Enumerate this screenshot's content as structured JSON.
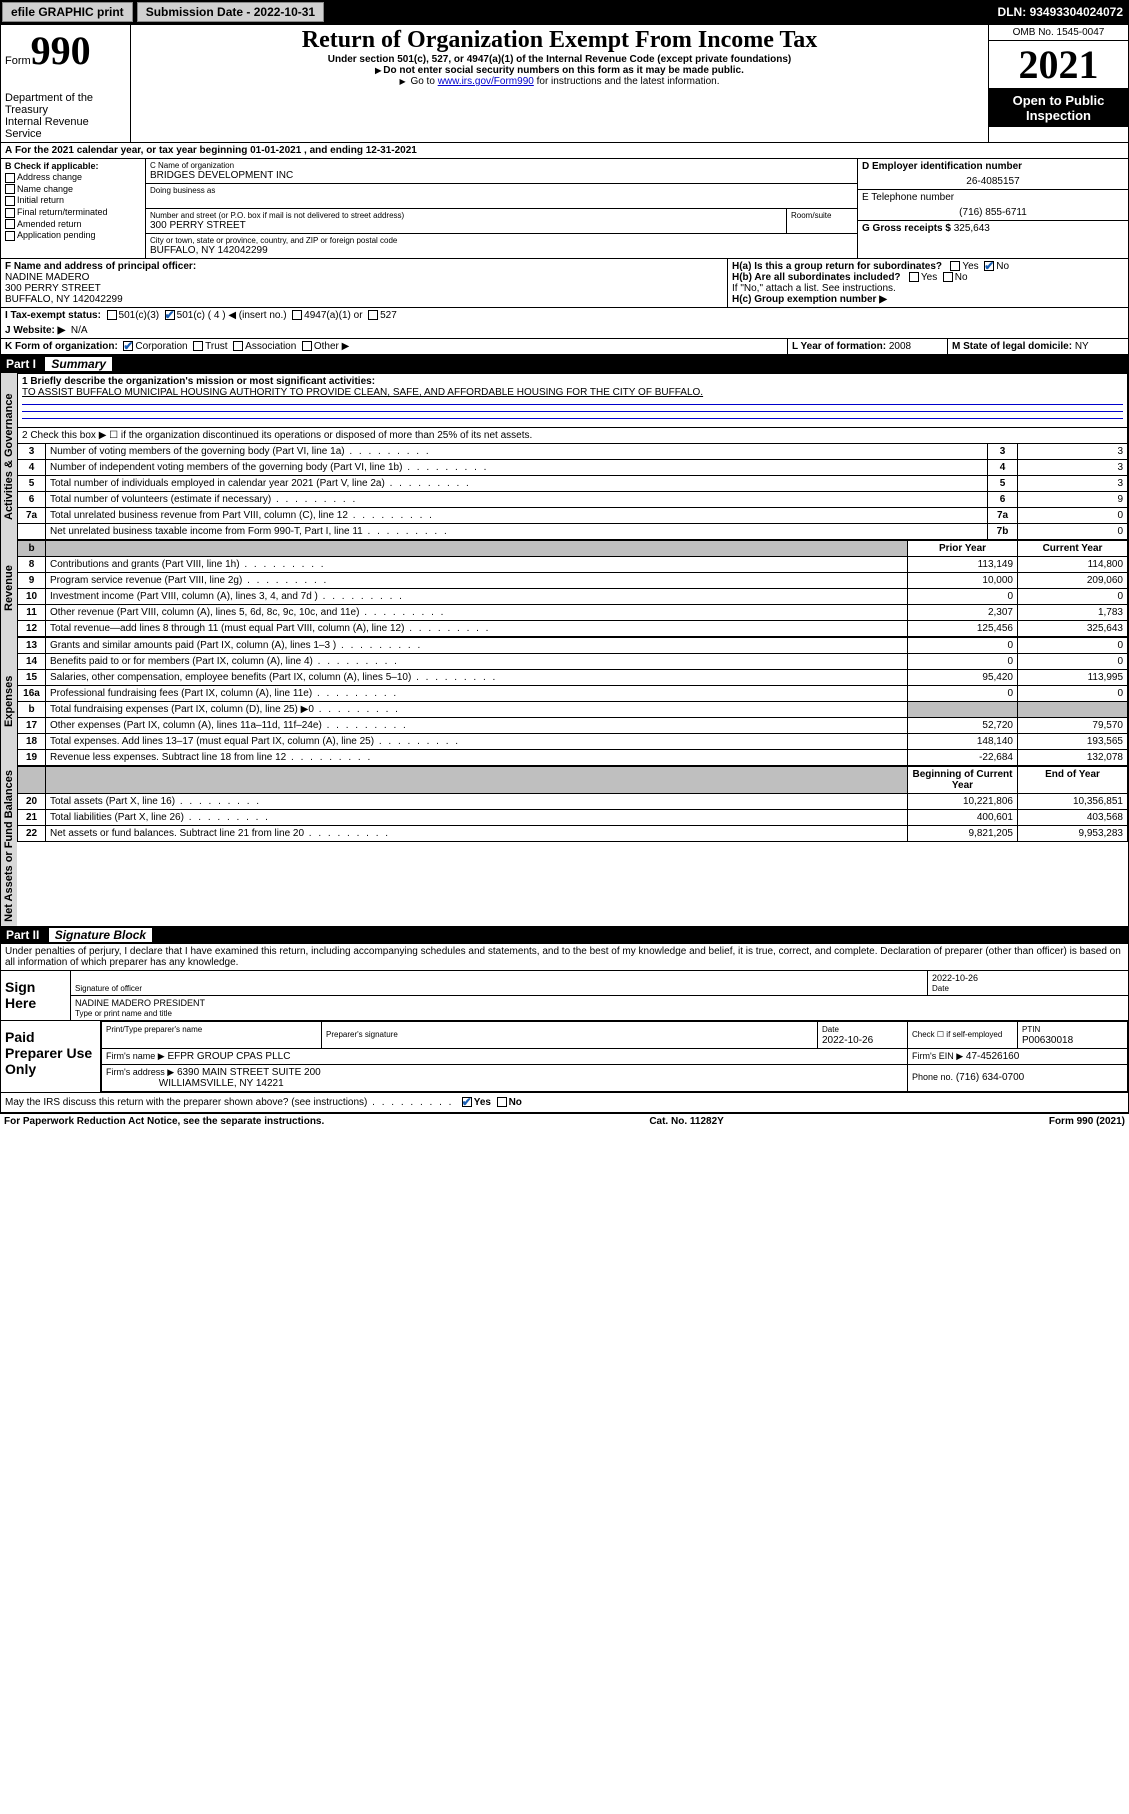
{
  "topbar": {
    "efile": "efile GRAPHIC print",
    "subdate_label": "Submission Date -",
    "subdate": "2022-10-31",
    "dln_label": "DLN:",
    "dln": "93493304024072"
  },
  "formhead": {
    "form_word": "Form",
    "form_num": "990",
    "dept": "Department of the Treasury",
    "irs": "Internal Revenue Service",
    "title": "Return of Organization Exempt From Income Tax",
    "sub1": "Under section 501(c), 527, or 4947(a)(1) of the Internal Revenue Code (except private foundations)",
    "sub2": "Do not enter social security numbers on this form as it may be made public.",
    "sub3_pre": "Go to ",
    "sub3_link": "www.irs.gov/Form990",
    "sub3_post": " for instructions and the latest information.",
    "omb": "OMB No. 1545-0047",
    "year": "2021",
    "open": "Open to Public Inspection"
  },
  "a_line": "For the 2021 calendar year, or tax year beginning 01-01-2021   , and ending 12-31-2021",
  "section_b": {
    "label": "B Check if applicable:",
    "items": [
      "Address change",
      "Name change",
      "Initial return",
      "Final return/terminated",
      "Amended return",
      "Application pending"
    ]
  },
  "org": {
    "c_label": "C Name of organization",
    "name": "BRIDGES DEVELOPMENT INC",
    "dba_label": "Doing business as",
    "addr_label": "Number and street (or P.O. box if mail is not delivered to street address)",
    "room_label": "Room/suite",
    "addr": "300 PERRY STREET",
    "city_label": "City or town, state or province, country, and ZIP or foreign postal code",
    "city": "BUFFALO, NY  142042299"
  },
  "d": {
    "label": "D Employer identification number",
    "val": "26-4085157"
  },
  "e": {
    "label": "E Telephone number",
    "val": "(716) 855-6711"
  },
  "g": {
    "label": "G Gross receipts $",
    "val": "325,643"
  },
  "f": {
    "label": "F Name and address of principal officer:",
    "name": "NADINE MADERO",
    "addr": "300 PERRY STREET",
    "city": "BUFFALO, NY  142042299"
  },
  "h": {
    "a_label": "H(a)  Is this a group return for subordinates?",
    "yes": "Yes",
    "no": "No",
    "b_label": "H(b)  Are all subordinates included?",
    "b_note": "If \"No,\" attach a list. See instructions.",
    "c_label": "H(c)  Group exemption number ▶"
  },
  "i": {
    "label": "I   Tax-exempt status:",
    "c3": "501(c)(3)",
    "c": "501(c) ( 4 ) ◀ (insert no.)",
    "a1": "4947(a)(1) or",
    "527": "527"
  },
  "j": {
    "label": "J   Website: ▶",
    "val": "N/A"
  },
  "k": {
    "label": "K Form of organization:",
    "corp": "Corporation",
    "trust": "Trust",
    "assoc": "Association",
    "other": "Other ▶"
  },
  "l": {
    "label": "L Year of formation:",
    "val": "2008"
  },
  "m": {
    "label": "M State of legal domicile:",
    "val": "NY"
  },
  "part1": {
    "bar": "Part I",
    "title": "Summary"
  },
  "summary": {
    "q1_label": "1   Briefly describe the organization's mission or most significant activities:",
    "q1_val": "TO ASSIST BUFFALO MUNICIPAL HOUSING AUTHORITY TO PROVIDE CLEAN, SAFE, AND AFFORDABLE HOUSING FOR THE CITY OF BUFFALO.",
    "q2": "2   Check this box ▶ ☐  if the organization discontinued its operations or disposed of more than 25% of its net assets.",
    "rows_top": [
      {
        "n": "3",
        "desc": "Number of voting members of the governing body (Part VI, line 1a)",
        "box": "3",
        "val": "3"
      },
      {
        "n": "4",
        "desc": "Number of independent voting members of the governing body (Part VI, line 1b)",
        "box": "4",
        "val": "3"
      },
      {
        "n": "5",
        "desc": "Total number of individuals employed in calendar year 2021 (Part V, line 2a)",
        "box": "5",
        "val": "3"
      },
      {
        "n": "6",
        "desc": "Total number of volunteers (estimate if necessary)",
        "box": "6",
        "val": "9"
      },
      {
        "n": "7a",
        "desc": "Total unrelated business revenue from Part VIII, column (C), line 12",
        "box": "7a",
        "val": "0"
      },
      {
        "n": "",
        "desc": "Net unrelated business taxable income from Form 990-T, Part I, line 11",
        "box": "7b",
        "val": "0"
      }
    ],
    "colhead_prior": "Prior Year",
    "colhead_current": "Current Year",
    "revenue_rows": [
      {
        "n": "8",
        "desc": "Contributions and grants (Part VIII, line 1h)",
        "prior": "113,149",
        "cur": "114,800"
      },
      {
        "n": "9",
        "desc": "Program service revenue (Part VIII, line 2g)",
        "prior": "10,000",
        "cur": "209,060"
      },
      {
        "n": "10",
        "desc": "Investment income (Part VIII, column (A), lines 3, 4, and 7d )",
        "prior": "0",
        "cur": "0"
      },
      {
        "n": "11",
        "desc": "Other revenue (Part VIII, column (A), lines 5, 6d, 8c, 9c, 10c, and 11e)",
        "prior": "2,307",
        "cur": "1,783"
      },
      {
        "n": "12",
        "desc": "Total revenue—add lines 8 through 11 (must equal Part VIII, column (A), line 12)",
        "prior": "125,456",
        "cur": "325,643"
      }
    ],
    "expense_rows": [
      {
        "n": "13",
        "desc": "Grants and similar amounts paid (Part IX, column (A), lines 1–3 )",
        "prior": "0",
        "cur": "0"
      },
      {
        "n": "14",
        "desc": "Benefits paid to or for members (Part IX, column (A), line 4)",
        "prior": "0",
        "cur": "0"
      },
      {
        "n": "15",
        "desc": "Salaries, other compensation, employee benefits (Part IX, column (A), lines 5–10)",
        "prior": "95,420",
        "cur": "113,995"
      },
      {
        "n": "16a",
        "desc": "Professional fundraising fees (Part IX, column (A), line 11e)",
        "prior": "0",
        "cur": "0"
      },
      {
        "n": "b",
        "desc": "Total fundraising expenses (Part IX, column (D), line 25) ▶0",
        "prior": "GRAY",
        "cur": "GRAY"
      },
      {
        "n": "17",
        "desc": "Other expenses (Part IX, column (A), lines 11a–11d, 11f–24e)",
        "prior": "52,720",
        "cur": "79,570"
      },
      {
        "n": "18",
        "desc": "Total expenses. Add lines 13–17 (must equal Part IX, column (A), line 25)",
        "prior": "148,140",
        "cur": "193,565"
      },
      {
        "n": "19",
        "desc": "Revenue less expenses. Subtract line 18 from line 12",
        "prior": "-22,684",
        "cur": "132,078"
      }
    ],
    "colhead_boy": "Beginning of Current Year",
    "colhead_eoy": "End of Year",
    "net_rows": [
      {
        "n": "20",
        "desc": "Total assets (Part X, line 16)",
        "prior": "10,221,806",
        "cur": "10,356,851"
      },
      {
        "n": "21",
        "desc": "Total liabilities (Part X, line 26)",
        "prior": "400,601",
        "cur": "403,568"
      },
      {
        "n": "22",
        "desc": "Net assets or fund balances. Subtract line 21 from line 20",
        "prior": "9,821,205",
        "cur": "9,953,283"
      }
    ],
    "vlabels": {
      "gov": "Activities & Governance",
      "rev": "Revenue",
      "exp": "Expenses",
      "net": "Net Assets or Fund Balances"
    }
  },
  "part2": {
    "bar": "Part II",
    "title": "Signature Block"
  },
  "sig": {
    "perjury": "Under penalties of perjury, I declare that I have examined this return, including accompanying schedules and statements, and to the best of my knowledge and belief, it is true, correct, and complete. Declaration of preparer (other than officer) is based on all information of which preparer has any knowledge.",
    "sign_here": "Sign Here",
    "sig_officer": "Signature of officer",
    "date_label": "Date",
    "date_val": "2022-10-26",
    "name_title": "NADINE MADERO  PRESIDENT",
    "name_title_label": "Type or print name and title",
    "paid": "Paid Preparer Use Only",
    "prep_name_label": "Print/Type preparer's name",
    "prep_sig_label": "Preparer's signature",
    "prep_date_label": "Date",
    "prep_date": "2022-10-26",
    "check_label": "Check ☐ if self-employed",
    "ptin_label": "PTIN",
    "ptin": "P00630018",
    "firm_name_label": "Firm's name   ▶",
    "firm_name": "EFPR GROUP CPAS PLLC",
    "firm_ein_label": "Firm's EIN ▶",
    "firm_ein": "47-4526160",
    "firm_addr_label": "Firm's address ▶",
    "firm_addr1": "6390 MAIN STREET SUITE 200",
    "firm_addr2": "WILLIAMSVILLE, NY  14221",
    "phone_label": "Phone no.",
    "phone": "(716) 634-0700",
    "discuss": "May the IRS discuss this return with the preparer shown above? (see instructions)"
  },
  "footer": {
    "pra": "For Paperwork Reduction Act Notice, see the separate instructions.",
    "cat": "Cat. No. 11282Y",
    "form": "Form 990 (2021)"
  },
  "colors": {
    "black": "#000000",
    "gray_bg": "#bfbfbf",
    "side_gray": "#d8d8d8",
    "link": "#0000cc",
    "check_blue": "#1a5fb4"
  }
}
